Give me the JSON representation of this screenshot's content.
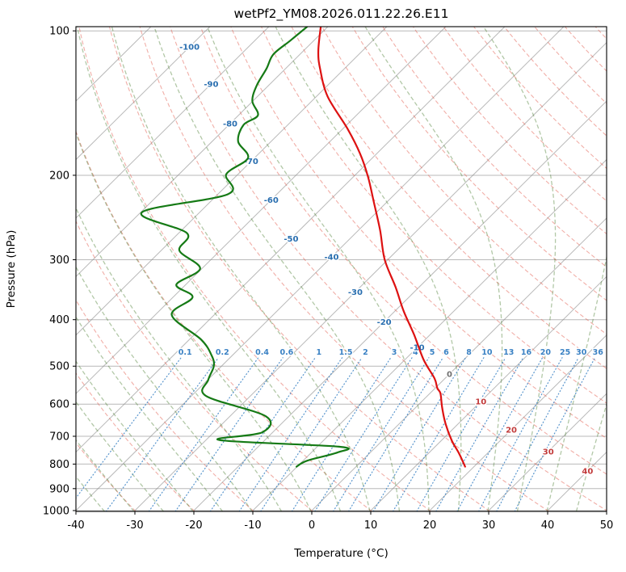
{
  "chart_data": {
    "type": "line",
    "subtype": "skew-t-log-p-sounding",
    "title": "wetPf2_YM08.2026.011.22.26.E11",
    "xlabel": "Temperature (°C)",
    "ylabel": "Pressure (hPa)",
    "xlim": [
      -40,
      50
    ],
    "x_ticks": [
      -40,
      -30,
      -20,
      -10,
      0,
      10,
      20,
      30,
      40,
      50
    ],
    "pressure_ticks": [
      100,
      200,
      300,
      400,
      500,
      600,
      700,
      800,
      900,
      1000
    ],
    "p_top": 98,
    "p_bottom": 1004,
    "skew_per_decade": 82,
    "grid": true,
    "isotherms": {
      "start": -110,
      "end": 50,
      "step": 10
    },
    "isotherm_labels": [
      {
        "t": -100,
        "p": 108
      },
      {
        "t": -90,
        "p": 129
      },
      {
        "t": -80,
        "p": 156
      },
      {
        "t": -70,
        "p": 187
      },
      {
        "t": -60,
        "p": 225
      },
      {
        "t": -50,
        "p": 271
      },
      {
        "t": -40,
        "p": 296
      },
      {
        "t": -30,
        "p": 350
      },
      {
        "t": -20,
        "p": 404
      },
      {
        "t": -10,
        "p": 457
      },
      {
        "t": 0,
        "p": 519
      },
      {
        "t": 10,
        "p": 592
      },
      {
        "t": 20,
        "p": 678
      },
      {
        "t": 30,
        "p": 753
      },
      {
        "t": 40,
        "p": 827
      }
    ],
    "dry_adiabats": {
      "start": -40,
      "end": 200,
      "step": 10
    },
    "moist_adiabats": {
      "start": -40,
      "end": 45,
      "step": 5
    },
    "mixing_ratio": {
      "values": [
        0.1,
        0.2,
        0.4,
        0.6,
        1,
        1.5,
        2,
        3,
        4,
        5,
        6,
        8,
        10,
        13,
        16,
        20,
        25,
        30,
        36
      ],
      "line_top_p": 480,
      "label_p": 468
    },
    "series": [
      {
        "name": "temperature",
        "color_key": "temperature",
        "points": [
          [
            98,
            -81.2
          ],
          [
            110,
            -77.5
          ],
          [
            120,
            -74.1
          ],
          [
            137,
            -68.1
          ],
          [
            160,
            -59.2
          ],
          [
            180,
            -52.9
          ],
          [
            202,
            -47.4
          ],
          [
            227,
            -42.3
          ],
          [
            260,
            -36.4
          ],
          [
            300,
            -30.5
          ],
          [
            342,
            -24.0
          ],
          [
            384,
            -18.5
          ],
          [
            430,
            -12.7
          ],
          [
            485,
            -6.8
          ],
          [
            530,
            -1.8
          ],
          [
            555,
            0.3
          ],
          [
            570,
            1.8
          ],
          [
            610,
            4.5
          ],
          [
            660,
            7.9
          ],
          [
            715,
            11.8
          ],
          [
            760,
            15.2
          ],
          [
            810,
            18.5
          ]
        ]
      },
      {
        "name": "dewpoint",
        "color_key": "dewpoint",
        "points": [
          [
            98,
            -83.5
          ],
          [
            105,
            -84.0
          ],
          [
            112,
            -84.5
          ],
          [
            120,
            -83.2
          ],
          [
            130,
            -82.0
          ],
          [
            140,
            -80.1
          ],
          [
            150,
            -76.7
          ],
          [
            157,
            -77.5
          ],
          [
            170,
            -75.6
          ],
          [
            184,
            -71.1
          ],
          [
            199,
            -72.0
          ],
          [
            219,
            -68.3
          ],
          [
            239,
            -79.8
          ],
          [
            264,
            -68.6
          ],
          [
            287,
            -66.9
          ],
          [
            313,
            -60.3
          ],
          [
            338,
            -61.6
          ],
          [
            359,
            -56.7
          ],
          [
            391,
            -57.2
          ],
          [
            440,
            -48.0
          ],
          [
            475,
            -43.5
          ],
          [
            500,
            -41.3
          ],
          [
            534,
            -39.9
          ],
          [
            577,
            -37.5
          ],
          [
            636,
            -23.9
          ],
          [
            687,
            -21.8
          ],
          [
            713,
            -27.7
          ],
          [
            736,
            -6.3
          ],
          [
            756,
            -5.5
          ],
          [
            787,
            -9.3
          ],
          [
            810,
            -10.1
          ]
        ]
      }
    ],
    "colors": {
      "temperature": "#dd1111",
      "dewpoint": "#157a15",
      "grid": "#8a8a8a",
      "dry_adiabat": "#e35d50",
      "moist_adiabat": "#477d2d",
      "mixing_ratio": "#3b82c4",
      "label_blue": "#2a6fb0",
      "label_red": "#c23b3b",
      "label_gray": "#707070",
      "axis": "#000000"
    }
  }
}
